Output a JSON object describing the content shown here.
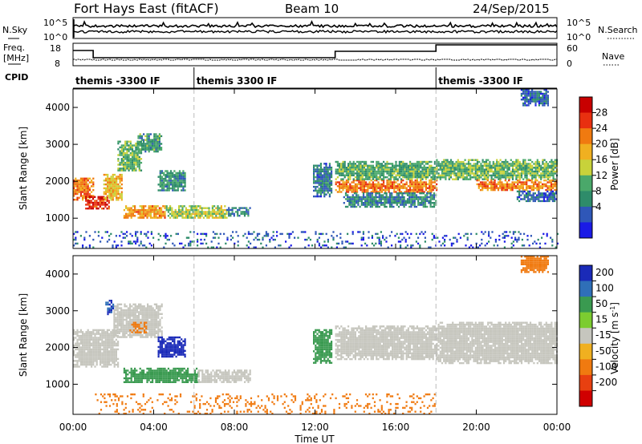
{
  "header": {
    "station": "Fort Hays East (fitACF)",
    "beam": "Beam 10",
    "date": "24/Sep/2015"
  },
  "summary_labels": {
    "nsky": "N.Sky",
    "nsearch": "N.Search",
    "freq_line1": "Freq.",
    "freq_line2": "[MHz]",
    "nave": "Nave",
    "cpid": "CPID",
    "noise_tick_top": "10^5",
    "noise_tick_bottom": "10^0",
    "freq_tick_top": "18",
    "freq_tick_bottom": "8",
    "nave_tick_top": "60",
    "nave_tick_bottom": "0"
  },
  "cpid_segments": [
    {
      "label": "themis -3300 IF",
      "start_h": 0,
      "end_h": 6
    },
    {
      "label": "themis 3300 IF",
      "start_h": 6,
      "end_h": 18
    },
    {
      "label": "themis -3300 IF",
      "start_h": 18,
      "end_h": 24
    }
  ],
  "colors": {
    "power_scale": [
      "#1a1ae6",
      "#2f57b8",
      "#2e8c6a",
      "#4aa86a",
      "#c8d23a",
      "#f0b020",
      "#f07a10",
      "#e83010",
      "#c80000"
    ],
    "velocity_scale": [
      "#1a2ab8",
      "#2f6fb8",
      "#3a9a50",
      "#7ccc30",
      "#c6c6be",
      "#f0b020",
      "#f07a10",
      "#e84010",
      "#d00000"
    ]
  },
  "chart_data": [
    {
      "type": "heatmap",
      "panel": "power",
      "ylabel": "Slant Range [km]",
      "xlabel": "Time UT",
      "x_ticks": [
        "00:00",
        "04:00",
        "08:00",
        "12:00",
        "16:00",
        "20:00",
        "00:00"
      ],
      "x_tick_hours": [
        0,
        4,
        8,
        12,
        16,
        20,
        24
      ],
      "xlim": [
        0,
        24
      ],
      "ylim": [
        180,
        4500
      ],
      "y_ticks": [
        1000,
        2000,
        3000,
        4000
      ],
      "colorbar": {
        "label": "Power [dB]",
        "ticks": [
          4,
          8,
          12,
          16,
          20,
          24,
          28
        ],
        "range": [
          0,
          30
        ]
      },
      "regions": [
        {
          "t0": 0.0,
          "t1": 1.0,
          "r0": 1500,
          "r1": 2100,
          "value": 22
        },
        {
          "t0": 0.6,
          "t1": 1.8,
          "r0": 1250,
          "r1": 1600,
          "value": 26
        },
        {
          "t0": 1.5,
          "t1": 2.4,
          "r0": 1500,
          "r1": 2200,
          "value": 18
        },
        {
          "t0": 2.2,
          "t1": 3.4,
          "r0": 2300,
          "r1": 3100,
          "value": 12
        },
        {
          "t0": 3.2,
          "t1": 4.4,
          "r0": 2800,
          "r1": 3300,
          "value": 10
        },
        {
          "t0": 2.5,
          "t1": 4.6,
          "r0": 1000,
          "r1": 1350,
          "value": 20
        },
        {
          "t0": 4.6,
          "t1": 7.6,
          "r0": 1000,
          "r1": 1350,
          "value": 14
        },
        {
          "t0": 7.6,
          "t1": 8.8,
          "r0": 1050,
          "r1": 1300,
          "value": 8
        },
        {
          "t0": 4.2,
          "t1": 5.6,
          "r0": 1750,
          "r1": 2300,
          "value": 9
        },
        {
          "t0": 11.9,
          "t1": 12.8,
          "r0": 1600,
          "r1": 2500,
          "value": 7
        },
        {
          "t0": 13.0,
          "t1": 18.0,
          "r0": 1700,
          "r1": 2050,
          "value": 22
        },
        {
          "t0": 13.0,
          "t1": 18.0,
          "r0": 2050,
          "r1": 2550,
          "value": 11
        },
        {
          "t0": 13.4,
          "t1": 18.0,
          "r0": 1300,
          "r1": 1700,
          "value": 8
        },
        {
          "t0": 18.0,
          "t1": 24.0,
          "r0": 2050,
          "r1": 2600,
          "value": 12
        },
        {
          "t0": 20.0,
          "t1": 24.0,
          "r0": 1750,
          "r1": 2050,
          "value": 21
        },
        {
          "t0": 22.0,
          "t1": 24.0,
          "r0": 1450,
          "r1": 1750,
          "value": 6
        },
        {
          "t0": 22.2,
          "t1": 23.6,
          "r0": 4050,
          "r1": 4500,
          "value": 6
        },
        {
          "t0": 0.0,
          "t1": 24.0,
          "r0": 200,
          "r1": 650,
          "value": 5
        }
      ]
    },
    {
      "type": "heatmap",
      "panel": "velocity",
      "ylabel": "Slant Range [km]",
      "xlabel": "Time UT",
      "x_ticks": [
        "00:00",
        "04:00",
        "08:00",
        "12:00",
        "16:00",
        "20:00",
        "00:00"
      ],
      "x_tick_hours": [
        0,
        4,
        8,
        12,
        16,
        20,
        24
      ],
      "xlim": [
        0,
        24
      ],
      "ylim": [
        180,
        4500
      ],
      "y_ticks": [
        1000,
        2000,
        3000,
        4000
      ],
      "colorbar": {
        "label": "Velocity [m s^-1]",
        "ticks": [
          200,
          100,
          50,
          15,
          -15,
          -50,
          -100,
          -200
        ]
      },
      "regions": [
        {
          "t0": 0.0,
          "t1": 2.2,
          "r0": 1500,
          "r1": 2500,
          "value": 0
        },
        {
          "t0": 2.0,
          "t1": 4.4,
          "r0": 2300,
          "r1": 3200,
          "value": -5
        },
        {
          "t0": 2.8,
          "t1": 3.6,
          "r0": 2400,
          "r1": 2700,
          "value": -60
        },
        {
          "t0": 1.6,
          "t1": 2.0,
          "r0": 2900,
          "r1": 3300,
          "value": 150
        },
        {
          "t0": 2.5,
          "t1": 6.2,
          "r0": 1050,
          "r1": 1450,
          "value": 40
        },
        {
          "t0": 6.2,
          "t1": 8.8,
          "r0": 1050,
          "r1": 1400,
          "value": 0
        },
        {
          "t0": 4.2,
          "t1": 5.6,
          "r0": 1750,
          "r1": 2300,
          "value": 180
        },
        {
          "t0": 11.9,
          "t1": 12.8,
          "r0": 1600,
          "r1": 2500,
          "value": 40
        },
        {
          "t0": 13.0,
          "t1": 18.0,
          "r0": 1700,
          "r1": 2600,
          "value": 0
        },
        {
          "t0": 18.0,
          "t1": 24.0,
          "r0": 1600,
          "r1": 2700,
          "value": 0
        },
        {
          "t0": 22.2,
          "t1": 23.6,
          "r0": 4050,
          "r1": 4500,
          "value": -40
        },
        {
          "t0": 1.0,
          "t1": 18.0,
          "r0": 200,
          "r1": 750,
          "value": -55
        }
      ]
    }
  ]
}
